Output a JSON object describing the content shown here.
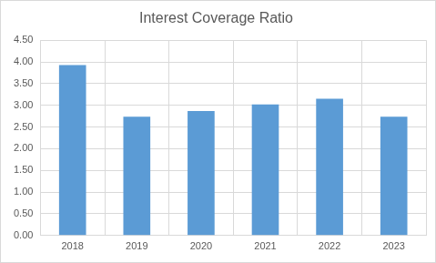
{
  "chart_data": {
    "type": "bar",
    "title": "Interest Coverage Ratio",
    "categories": [
      "2018",
      "2019",
      "2020",
      "2021",
      "2022",
      "2023"
    ],
    "values": [
      3.93,
      2.74,
      2.87,
      3.02,
      3.15,
      2.74
    ],
    "color": "#5b9bd5",
    "ylim": [
      0,
      4.5
    ],
    "yticks": [
      {
        "value": 0,
        "label": "0.00"
      },
      {
        "value": 0.5,
        "label": "0.50"
      },
      {
        "value": 1,
        "label": "1.00"
      },
      {
        "value": 1.5,
        "label": "1.50"
      },
      {
        "value": 2,
        "label": "2.00"
      },
      {
        "value": 2.5,
        "label": "2.50"
      },
      {
        "value": 3,
        "label": "3.00"
      },
      {
        "value": 3.5,
        "label": "3.50"
      },
      {
        "value": 4,
        "label": "4.00"
      },
      {
        "value": 4.5,
        "label": "4.50"
      }
    ],
    "grid": true
  }
}
